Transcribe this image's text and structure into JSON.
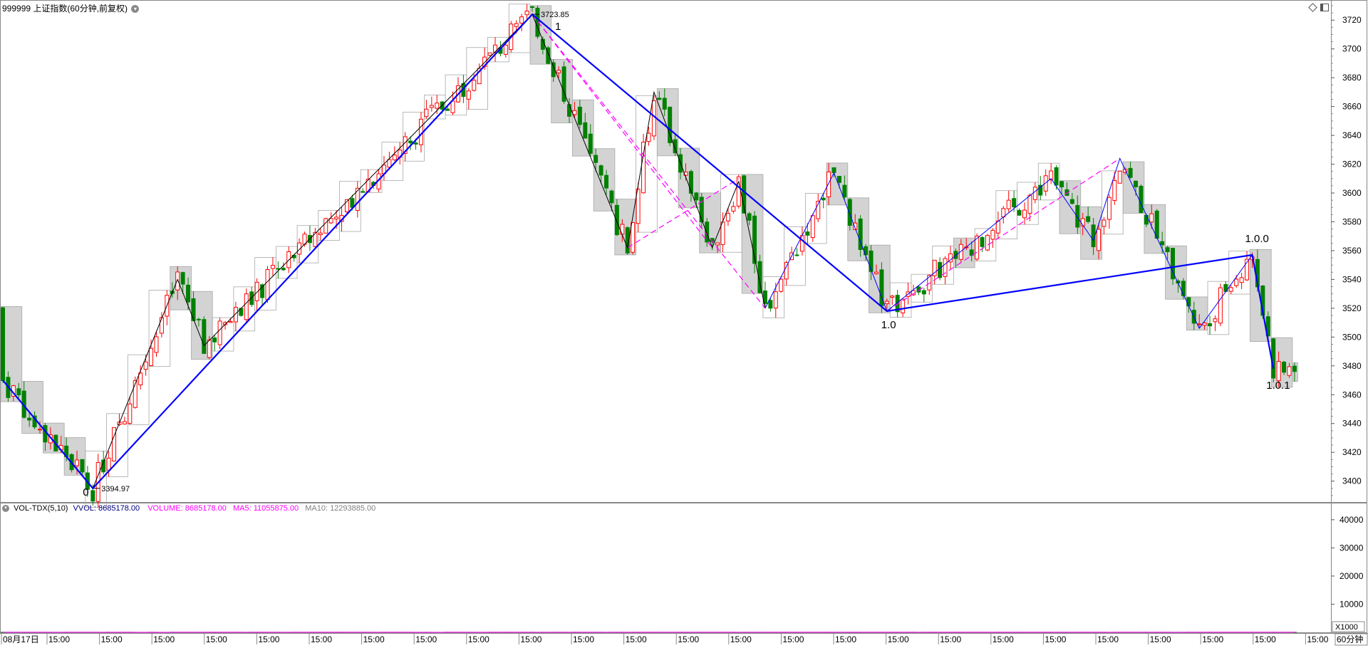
{
  "header": {
    "instrument": "999999 上证指数(60分钟,前复权)",
    "dropdown_icon": "chevron-down-icon",
    "right_icons": [
      "diamond-icon",
      "panel-toggle-icon"
    ]
  },
  "volume_header": {
    "indicator": "VOL-TDX(5,10)",
    "vvol_label": "VVOL:",
    "vvol_value": "8685178.00",
    "volume_label": "VOLUME:",
    "volume_value": "8685178.00",
    "ma5_label": "MA5:",
    "ma5_value": "11055875.00",
    "ma10_label": "MA10:",
    "ma10_value": "12293885.00",
    "colors": {
      "vvol": "#000080",
      "volume": "#ff00ff",
      "ma5": "#ff00ff",
      "ma10": "#808080"
    }
  },
  "price_axis": {
    "ticks": [
      "3720",
      "3700",
      "3680",
      "3660",
      "3640",
      "3620",
      "3600",
      "3580",
      "3560",
      "3540",
      "3520",
      "3500",
      "3480",
      "3460",
      "3440",
      "3420",
      "3400"
    ]
  },
  "volume_axis": {
    "ticks": [
      "40000",
      "30000",
      "20000",
      "10000"
    ],
    "unit": "X1000"
  },
  "time_axis": {
    "labels": [
      "08月17日",
      "15:00",
      "15:00",
      "15:00",
      "15:00",
      "15:00",
      "15:00",
      "15:00",
      "15:00",
      "15:00",
      "15:00",
      "15:00",
      "15:00",
      "15:00",
      "15:00",
      "15:00",
      "15:00",
      "15:00",
      "15:00",
      "15:00",
      "15:00",
      "15:00",
      "15:00",
      "15:00",
      "15:00",
      "15:00"
    ],
    "period_label": "60分钟"
  },
  "annotations": {
    "high_value": "3723.85",
    "low_value": "3394.97",
    "wave_labels": [
      "0",
      "1",
      "1.0",
      "1.0.0",
      "1.0.1"
    ]
  },
  "chart_data": {
    "type": "candlestick",
    "title": "999999 上证指数(60分钟,前复权)",
    "ylim": [
      3385,
      3730
    ],
    "volume_ylim": [
      0,
      43000
    ],
    "volume_unit": "X1000",
    "colors": {
      "up": "#ff0000",
      "down": "#008000",
      "main_wave": "#0000ff",
      "sub_wave": "#000000",
      "channel": "#ff00ff",
      "box_fill": "#c8c8c8"
    },
    "zigzag_main": [
      {
        "i": 0,
        "price": 3470
      },
      {
        "i": 17,
        "price": 3395
      },
      {
        "i": 100,
        "price": 3724
      },
      {
        "i": 167,
        "price": 3518
      },
      {
        "i": 236,
        "price": 3557
      },
      {
        "i": 240,
        "price": 3478
      }
    ],
    "wave_points": [
      {
        "label": "0",
        "i": 17,
        "price": 3395
      },
      {
        "label": "1",
        "i": 100,
        "price": 3724
      },
      {
        "label": "1.0",
        "i": 167,
        "price": 3518
      },
      {
        "label": "1.0.0",
        "i": 236,
        "price": 3557
      },
      {
        "label": "1.0.1",
        "i": 240,
        "price": 3478
      }
    ],
    "sub_waves": [
      [
        {
          "i": 17,
          "price": 3395
        },
        {
          "i": 33,
          "price": 3540
        },
        {
          "i": 38,
          "price": 3494
        },
        {
          "i": 100,
          "price": 3724
        }
      ],
      [
        {
          "i": 100,
          "price": 3724
        },
        {
          "i": 118,
          "price": 3562
        },
        {
          "i": 123,
          "price": 3670
        },
        {
          "i": 134,
          "price": 3562
        },
        {
          "i": 139,
          "price": 3608
        },
        {
          "i": 144,
          "price": 3520
        }
      ],
      [
        {
          "i": 144,
          "price": 3520
        },
        {
          "i": 157,
          "price": 3614
        },
        {
          "i": 167,
          "price": 3518
        },
        {
          "i": 198,
          "price": 3610
        },
        {
          "i": 206,
          "price": 3567
        },
        {
          "i": 211,
          "price": 3624
        },
        {
          "i": 226,
          "price": 3506
        },
        {
          "i": 236,
          "price": 3557
        }
      ]
    ],
    "channel_lines": [
      [
        {
          "i": 100,
          "price": 3724
        },
        {
          "i": 144,
          "price": 3520
        }
      ],
      [
        {
          "i": 100,
          "price": 3724
        },
        {
          "i": 134,
          "price": 3562
        }
      ],
      [
        {
          "i": 118,
          "price": 3562
        },
        {
          "i": 139,
          "price": 3610
        }
      ],
      [
        {
          "i": 167,
          "price": 3518
        },
        {
          "i": 236,
          "price": 3557
        }
      ],
      [
        {
          "i": 167,
          "price": 3518
        },
        {
          "i": 211,
          "price": 3624
        }
      ]
    ],
    "candle_count": 245,
    "volume_last": 8685178,
    "ma5_last": 11055875,
    "ma10_last": 12293885
  }
}
